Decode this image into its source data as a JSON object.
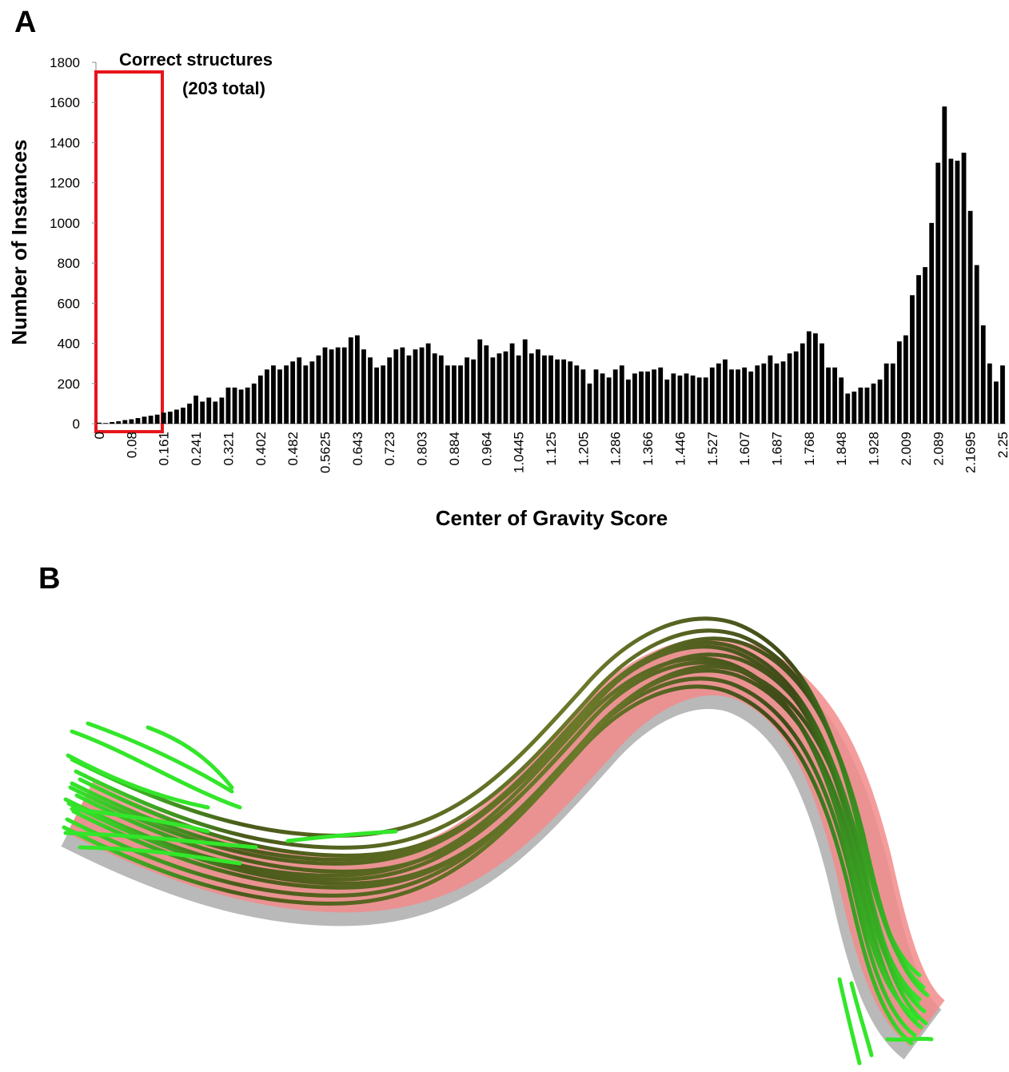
{
  "chart_data": {
    "type": "bar",
    "panel_label": "A",
    "annotation": [
      "Correct structures",
      "(203 total)"
    ],
    "xlabel": "Center of Gravity Score",
    "ylabel": "Number of Instances",
    "color": "#000000",
    "ylim": [
      0,
      1800
    ],
    "yticks": [
      0,
      200,
      400,
      600,
      800,
      1000,
      1200,
      1400,
      1600,
      1800
    ],
    "categories": [
      "0",
      null,
      null,
      null,
      null,
      "0.08",
      null,
      null,
      null,
      null,
      "0.161",
      null,
      null,
      null,
      null,
      "0.241",
      null,
      null,
      null,
      null,
      "0.321",
      null,
      null,
      null,
      null,
      "0.402",
      null,
      null,
      null,
      null,
      "0.482",
      null,
      null,
      null,
      null,
      "0.5625",
      null,
      null,
      null,
      null,
      "0.643",
      null,
      null,
      null,
      null,
      "0.723",
      null,
      null,
      null,
      null,
      "0.803",
      null,
      null,
      null,
      null,
      "0.884",
      null,
      null,
      null,
      null,
      "0.964",
      null,
      null,
      null,
      null,
      "1.0445",
      null,
      null,
      null,
      null,
      "1.125",
      null,
      null,
      null,
      null,
      "1.205",
      null,
      null,
      null,
      null,
      "1.286",
      null,
      null,
      null,
      null,
      "1.366",
      null,
      null,
      null,
      null,
      "1.446",
      null,
      null,
      null,
      null,
      "1.527",
      null,
      null,
      null,
      null,
      "1.607",
      null,
      null,
      null,
      null,
      "1.687",
      null,
      null,
      null,
      null,
      "1.768",
      null,
      null,
      null,
      null,
      "1.848",
      null,
      null,
      null,
      null,
      "1.928",
      null,
      null,
      null,
      null,
      "2.009",
      null,
      null,
      null,
      null,
      "2.089",
      null,
      null,
      null,
      null,
      "2.1695",
      null,
      null,
      null,
      null,
      "2.25"
    ],
    "values": [
      5,
      3,
      8,
      12,
      18,
      22,
      28,
      35,
      40,
      45,
      55,
      60,
      70,
      80,
      100,
      140,
      110,
      130,
      110,
      130,
      180,
      180,
      170,
      180,
      200,
      240,
      270,
      290,
      270,
      290,
      310,
      330,
      290,
      310,
      340,
      380,
      370,
      380,
      380,
      430,
      440,
      370,
      330,
      280,
      290,
      330,
      370,
      380,
      340,
      370,
      380,
      400,
      350,
      340,
      290,
      290,
      290,
      330,
      320,
      420,
      390,
      330,
      350,
      360,
      400,
      340,
      420,
      350,
      370,
      340,
      340,
      320,
      320,
      310,
      290,
      270,
      200,
      270,
      250,
      230,
      270,
      290,
      220,
      250,
      260,
      260,
      270,
      280,
      220,
      250,
      240,
      250,
      240,
      230,
      230,
      280,
      300,
      320,
      270,
      270,
      280,
      260,
      290,
      300,
      340,
      300,
      310,
      350,
      360,
      400,
      460,
      450,
      400,
      280,
      280,
      230,
      150,
      160,
      180,
      180,
      200,
      220,
      300,
      300,
      410,
      440,
      640,
      740,
      780,
      1000,
      1300,
      1580,
      1320,
      1310,
      1350,
      1060,
      790,
      490,
      300,
      210,
      290
    ]
  },
  "figure_b": {
    "panel_label": "B"
  }
}
